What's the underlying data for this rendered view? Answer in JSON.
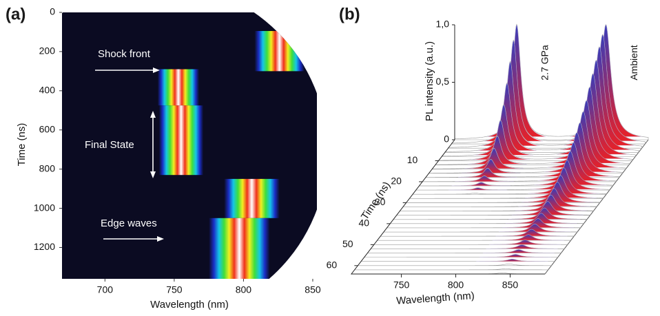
{
  "chart_data": [
    {
      "type": "streak",
      "panel_label": "(a)",
      "x_label": "Wavelength (nm)",
      "y_label": "Time (ns)",
      "xlim": [
        669,
        853
      ],
      "ylim": [
        0,
        1360
      ],
      "y_inverted": true,
      "xticks": [
        700,
        750,
        800,
        850
      ],
      "yticks": [
        0,
        200,
        400,
        600,
        800,
        1000,
        1200
      ],
      "background": "#0b0b22",
      "colormap": [
        "#0b0b22",
        "#1a2fc8",
        "#14c6e6",
        "#3ede3c",
        "#f2ee22",
        "#f0301a",
        "#ffffff"
      ],
      "bands": [
        {
          "center": 826,
          "width": 36,
          "start": 95,
          "end": 300
        },
        {
          "center": 753,
          "width": 30,
          "start": 290,
          "end": 475
        },
        {
          "center": 755,
          "width": 32,
          "start": 475,
          "end": 830
        },
        {
          "center": 806,
          "width": 40,
          "start": 850,
          "end": 1050
        },
        {
          "center": 797,
          "width": 44,
          "start": 1050,
          "end": 1360
        }
      ],
      "annotations": [
        "Shock front",
        "Final State",
        "Edge waves"
      ]
    },
    {
      "type": "waterfall3d",
      "panel_label": "(b)",
      "x_label": "Wavelength (nm)",
      "y_label": "Time (ns)",
      "z_label": "PL intensity (a.u.)",
      "xlim": [
        704,
        882
      ],
      "xticks": [
        750,
        800,
        850
      ],
      "ylim": [
        0,
        64
      ],
      "yticks": [
        10,
        20,
        30,
        40,
        50,
        60
      ],
      "zlim": [
        0,
        1
      ],
      "zticks": [
        0,
        {
          "value": 0.5,
          "label": "0,5"
        },
        {
          "value": 1,
          "label": "1,0"
        }
      ],
      "times": [
        0,
        2,
        4,
        6,
        8,
        10,
        12,
        14,
        16,
        18,
        20,
        22,
        24,
        26,
        28,
        30,
        32,
        34,
        36,
        38,
        40,
        42,
        44,
        46,
        48,
        50,
        52,
        54,
        56,
        58,
        60,
        62,
        64
      ],
      "series": [
        {
          "name": "2.7 GPa",
          "center": 761,
          "width": 9,
          "values": [
            1,
            0.9,
            0.75,
            0.6,
            0.45,
            0.35,
            0.25,
            0.18,
            0.12,
            0.08,
            0.05,
            0.03,
            0.02,
            0.01,
            0,
            0,
            0,
            0,
            0,
            0,
            0,
            0,
            0,
            0,
            0,
            0,
            0,
            0,
            0,
            0,
            0,
            0,
            0
          ]
        },
        {
          "name": "Ambient",
          "center": 843,
          "width": 11,
          "values": [
            1,
            0.95,
            0.88,
            0.8,
            0.72,
            0.64,
            0.56,
            0.5,
            0.44,
            0.39,
            0.34,
            0.3,
            0.26,
            0.23,
            0.2,
            0.18,
            0.16,
            0.14,
            0.12,
            0.1,
            0.09,
            0.08,
            0.07,
            0.06,
            0.05,
            0.04,
            0.035,
            0.03,
            0.025,
            0.02,
            0.015,
            0.01,
            0.01
          ]
        }
      ],
      "gradient": [
        "#3a3cb8",
        "#e62129"
      ],
      "line_color": "#9a9a9a"
    }
  ]
}
